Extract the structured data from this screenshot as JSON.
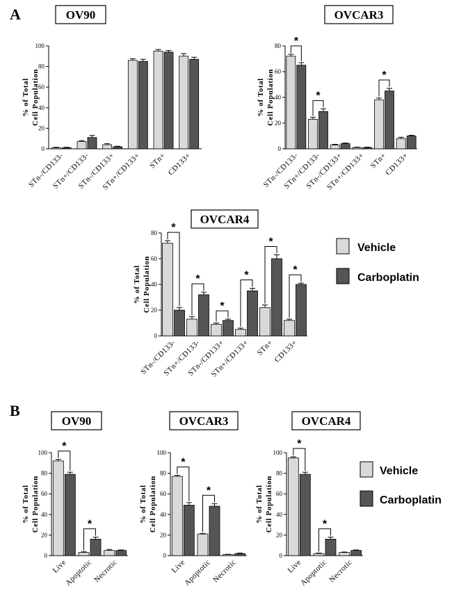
{
  "panel_labels": [
    "A",
    "B"
  ],
  "legend": {
    "series": [
      {
        "name": "Vehicle",
        "color": "#d9d9d9"
      },
      {
        "name": "Carboplatin",
        "color": "#555555"
      }
    ]
  },
  "y_axis": {
    "label_line1": "% of Total",
    "label_line2": "Cell Population"
  },
  "chart_data": [
    {
      "id": "A-OV90",
      "panel": "A",
      "type": "bar",
      "title": "OV90",
      "ylabel": "% of Total Cell Population",
      "ylim": [
        0,
        100
      ],
      "yticks": [
        0,
        20,
        40,
        60,
        80,
        100
      ],
      "categories": [
        "STn-/CD133-",
        "STn+/CD133-",
        "STn-/CD133+",
        "STn+/CD133+",
        "STn+",
        "CD133+"
      ],
      "series": [
        {
          "name": "Vehicle",
          "values": [
            1,
            7,
            4,
            86,
            95,
            90
          ],
          "errors": [
            0.5,
            1,
            1,
            1.5,
            1.5,
            2.5
          ]
        },
        {
          "name": "Carboplatin",
          "values": [
            1,
            11,
            2,
            85,
            94,
            87
          ],
          "errors": [
            0.5,
            2,
            0.5,
            2,
            1.5,
            2
          ]
        }
      ],
      "significance": []
    },
    {
      "id": "A-OVCAR3",
      "panel": "A",
      "type": "bar",
      "title": "OVCAR3",
      "ylabel": "% of Total Cell Population",
      "ylim": [
        0,
        80
      ],
      "yticks": [
        0,
        20,
        40,
        60,
        80
      ],
      "categories": [
        "STn-/CD133-",
        "STn+/CD133-",
        "STn-/CD133+",
        "STn+/CD133+",
        "STn+",
        "CD133+"
      ],
      "series": [
        {
          "name": "Vehicle",
          "values": [
            72,
            23,
            3,
            1,
            38,
            8
          ],
          "errors": [
            1.5,
            1.5,
            0.5,
            0.3,
            1.5,
            1
          ]
        },
        {
          "name": "Carboplatin",
          "values": [
            65,
            29,
            4,
            1,
            45,
            10
          ],
          "errors": [
            2,
            2,
            0.5,
            0.3,
            2,
            0.5
          ]
        }
      ],
      "significance": [
        {
          "category": "STn-/CD133-",
          "label": "*"
        },
        {
          "category": "STn+/CD133-",
          "label": "*"
        },
        {
          "category": "STn+",
          "label": "*"
        }
      ]
    },
    {
      "id": "A-OVCAR4",
      "panel": "A",
      "type": "bar",
      "title": "OVCAR4",
      "ylabel": "% of Total Cell Population",
      "ylim": [
        0,
        80
      ],
      "yticks": [
        0,
        20,
        40,
        60,
        80
      ],
      "categories": [
        "STn-/CD133-",
        "STn+/CD133-",
        "STn-/CD133+",
        "STn+/CD133+",
        "STn+",
        "CD133+"
      ],
      "series": [
        {
          "name": "Vehicle",
          "values": [
            72,
            13,
            9,
            5,
            22,
            12
          ],
          "errors": [
            2,
            2,
            1,
            1,
            2,
            1
          ]
        },
        {
          "name": "Carboplatin",
          "values": [
            20,
            32,
            12,
            35,
            60,
            40
          ],
          "errors": [
            2,
            2,
            1,
            2,
            3,
            1
          ]
        }
      ],
      "significance": [
        {
          "category": "STn-/CD133-",
          "label": "*"
        },
        {
          "category": "STn+/CD133-",
          "label": "*"
        },
        {
          "category": "STn-/CD133+",
          "label": "*"
        },
        {
          "category": "STn+/CD133+",
          "label": "*"
        },
        {
          "category": "STn+",
          "label": "*"
        },
        {
          "category": "CD133+",
          "label": "*"
        }
      ]
    },
    {
      "id": "B-OV90",
      "panel": "B",
      "type": "bar",
      "title": "OV90",
      "ylabel": "% of Total Cell Population",
      "ylim": [
        0,
        100
      ],
      "yticks": [
        0,
        20,
        40,
        60,
        80,
        100
      ],
      "categories": [
        "Live",
        "Apoptotic",
        "Necrotic"
      ],
      "series": [
        {
          "name": "Vehicle",
          "values": [
            92,
            3,
            5
          ],
          "errors": [
            1.5,
            1,
            1
          ]
        },
        {
          "name": "Carboplatin",
          "values": [
            79,
            16,
            5
          ],
          "errors": [
            2,
            2,
            0.5
          ]
        }
      ],
      "significance": [
        {
          "category": "Live",
          "label": "*"
        },
        {
          "category": "Apoptotic",
          "label": "*"
        }
      ]
    },
    {
      "id": "B-OVCAR3",
      "panel": "B",
      "type": "bar",
      "title": "OVCAR3",
      "ylabel": "% of Total Cell Population",
      "ylim": [
        0,
        100
      ],
      "yticks": [
        0,
        20,
        40,
        60,
        80,
        100
      ],
      "categories": [
        "Live",
        "Apoptotic",
        "Necrotic"
      ],
      "series": [
        {
          "name": "Vehicle",
          "values": [
            77,
            21,
            1
          ],
          "errors": [
            1,
            0.5,
            0.3
          ]
        },
        {
          "name": "Carboplatin",
          "values": [
            49,
            48,
            2
          ],
          "errors": [
            2.5,
            2.5,
            0.5
          ]
        }
      ],
      "significance": [
        {
          "category": "Live",
          "label": "*"
        },
        {
          "category": "Apoptotic",
          "label": "*"
        }
      ]
    },
    {
      "id": "B-OVCAR4",
      "panel": "B",
      "type": "bar",
      "title": "OVCAR4",
      "ylabel": "% of Total Cell Population",
      "ylim": [
        0,
        100
      ],
      "yticks": [
        0,
        20,
        40,
        60,
        80,
        100
      ],
      "categories": [
        "Live",
        "Apoptotic",
        "Necrotic"
      ],
      "series": [
        {
          "name": "Vehicle",
          "values": [
            95,
            2,
            3
          ],
          "errors": [
            1,
            0.5,
            0.5
          ]
        },
        {
          "name": "Carboplatin",
          "values": [
            79,
            16,
            5
          ],
          "errors": [
            2,
            2,
            0.5
          ]
        }
      ],
      "significance": [
        {
          "category": "Live",
          "label": "*"
        },
        {
          "category": "Apoptotic",
          "label": "*"
        }
      ]
    }
  ]
}
